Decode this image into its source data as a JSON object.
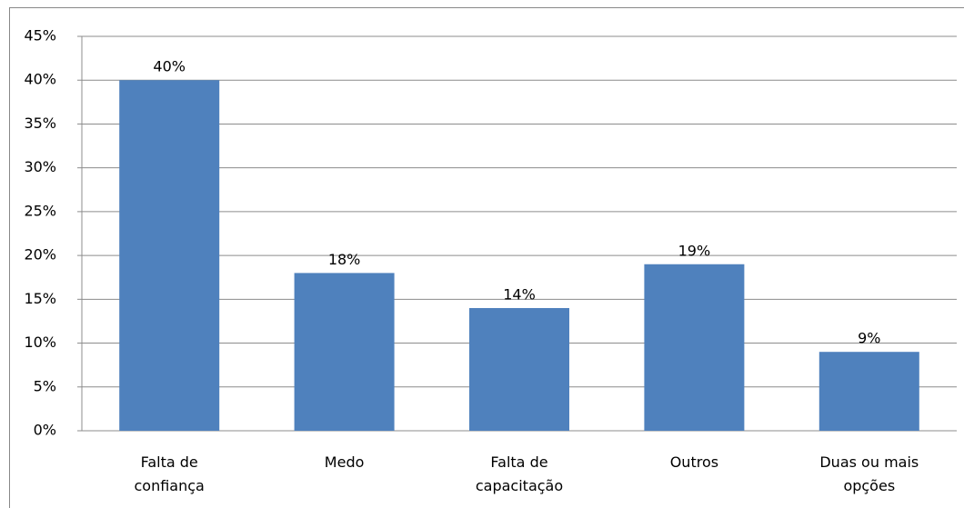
{
  "chart_data": {
    "type": "bar",
    "categories": [
      "Falta de confiança",
      "Medo",
      "Falta de capacitação",
      "Outros",
      "Duas ou mais opções"
    ],
    "values": [
      40,
      18,
      14,
      19,
      9
    ],
    "value_labels": [
      "40%",
      "18%",
      "14%",
      "19%",
      "9%"
    ],
    "color": "#4f81bd",
    "ylim": [
      0,
      45
    ],
    "yticks": [
      {
        "value": 0,
        "label": "0%"
      },
      {
        "value": 5,
        "label": "5%"
      },
      {
        "value": 10,
        "label": "10%"
      },
      {
        "value": 15,
        "label": "15%"
      },
      {
        "value": 20,
        "label": "20%"
      },
      {
        "value": 25,
        "label": "25%"
      },
      {
        "value": 30,
        "label": "30%"
      },
      {
        "value": 35,
        "label": "35%"
      },
      {
        "value": 40,
        "label": "40%"
      },
      {
        "value": 45,
        "label": "45%"
      }
    ],
    "grid": true
  }
}
